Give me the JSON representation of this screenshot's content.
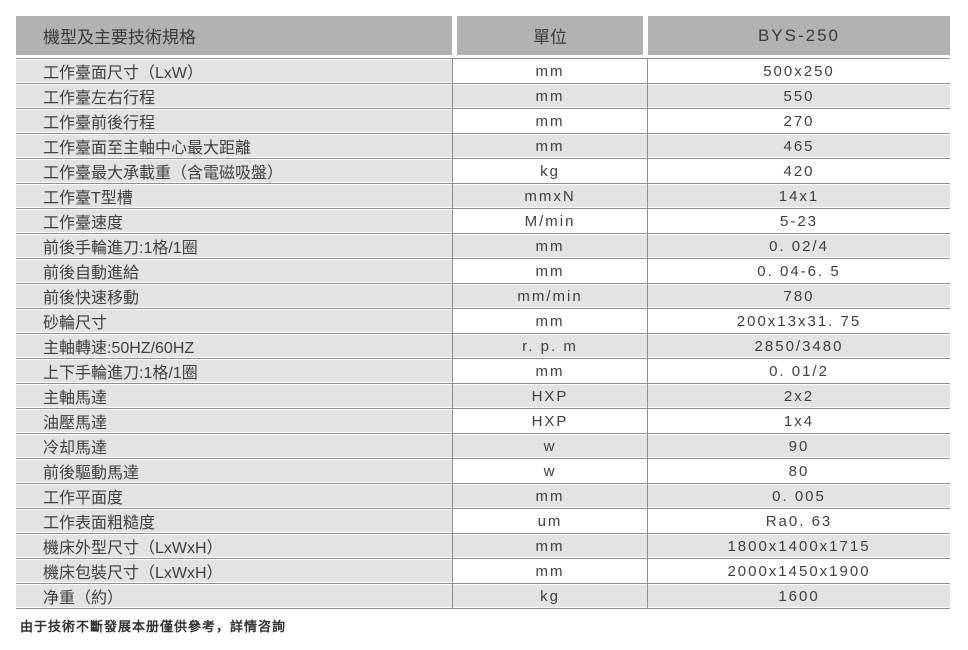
{
  "colors": {
    "header_bg": "#b2b2b2",
    "row_alt_gray": "#e3e3e3",
    "grid_line": "#8f8f8f",
    "text": "#3f3f3f"
  },
  "table": {
    "header": {
      "spec": "機型及主要技術規格",
      "unit": "單位",
      "model": "BYS-250"
    },
    "rows": [
      {
        "spec": "工作臺面尺寸（LxW）",
        "unit": "mm",
        "value": "500x250"
      },
      {
        "spec": "工作臺左右行程",
        "unit": "mm",
        "value": "550"
      },
      {
        "spec": "工作臺前後行程",
        "unit": "mm",
        "value": "270"
      },
      {
        "spec": "工作臺面至主軸中心最大距離",
        "unit": "mm",
        "value": "465"
      },
      {
        "spec": "工作臺最大承載重（含電磁吸盤）",
        "unit": "kg",
        "value": "420"
      },
      {
        "spec": "工作臺T型槽",
        "unit": "mmxN",
        "value": "14x1"
      },
      {
        "spec": "工作臺速度",
        "unit": "M/min",
        "value": "5-23"
      },
      {
        "spec": "前後手輪進刀:1格/1圈",
        "unit": "mm",
        "value": "0. 02/4"
      },
      {
        "spec": "前後自動進給",
        "unit": "mm",
        "value": "0. 04-6. 5"
      },
      {
        "spec": "前後快速移動",
        "unit": "mm/min",
        "value": "780"
      },
      {
        "spec": "砂輪尺寸",
        "unit": "mm",
        "value": "200x13x31. 75"
      },
      {
        "spec": "主軸轉速:50HZ/60HZ",
        "unit": "r. p. m",
        "value": "2850/3480"
      },
      {
        "spec": "上下手輪進刀:1格/1圈",
        "unit": "mm",
        "value": "0. 01/2"
      },
      {
        "spec": "主軸馬達",
        "unit": "HXP",
        "value": "2x2"
      },
      {
        "spec": "油壓馬達",
        "unit": "HXP",
        "value": "1x4"
      },
      {
        "spec": "冷却馬達",
        "unit": "w",
        "value": "90"
      },
      {
        "spec": "前後驅動馬達",
        "unit": "w",
        "value": "80"
      },
      {
        "spec": "工作平面度",
        "unit": "mm",
        "value": "0. 005"
      },
      {
        "spec": "工作表面粗糙度",
        "unit": "um",
        "value": "Ra0. 63"
      },
      {
        "spec": "機床外型尺寸（LxWxH）",
        "unit": "mm",
        "value": "1800x1400x1715"
      },
      {
        "spec": "機床包裝尺寸（LxWxH）",
        "unit": "mm",
        "value": "2000x1450x1900"
      },
      {
        "spec": "净重（約）",
        "unit": "kg",
        "value": "1600"
      }
    ]
  },
  "footer": {
    "note": "由于技術不斷發展本册僅供參考，詳情咨詢"
  }
}
